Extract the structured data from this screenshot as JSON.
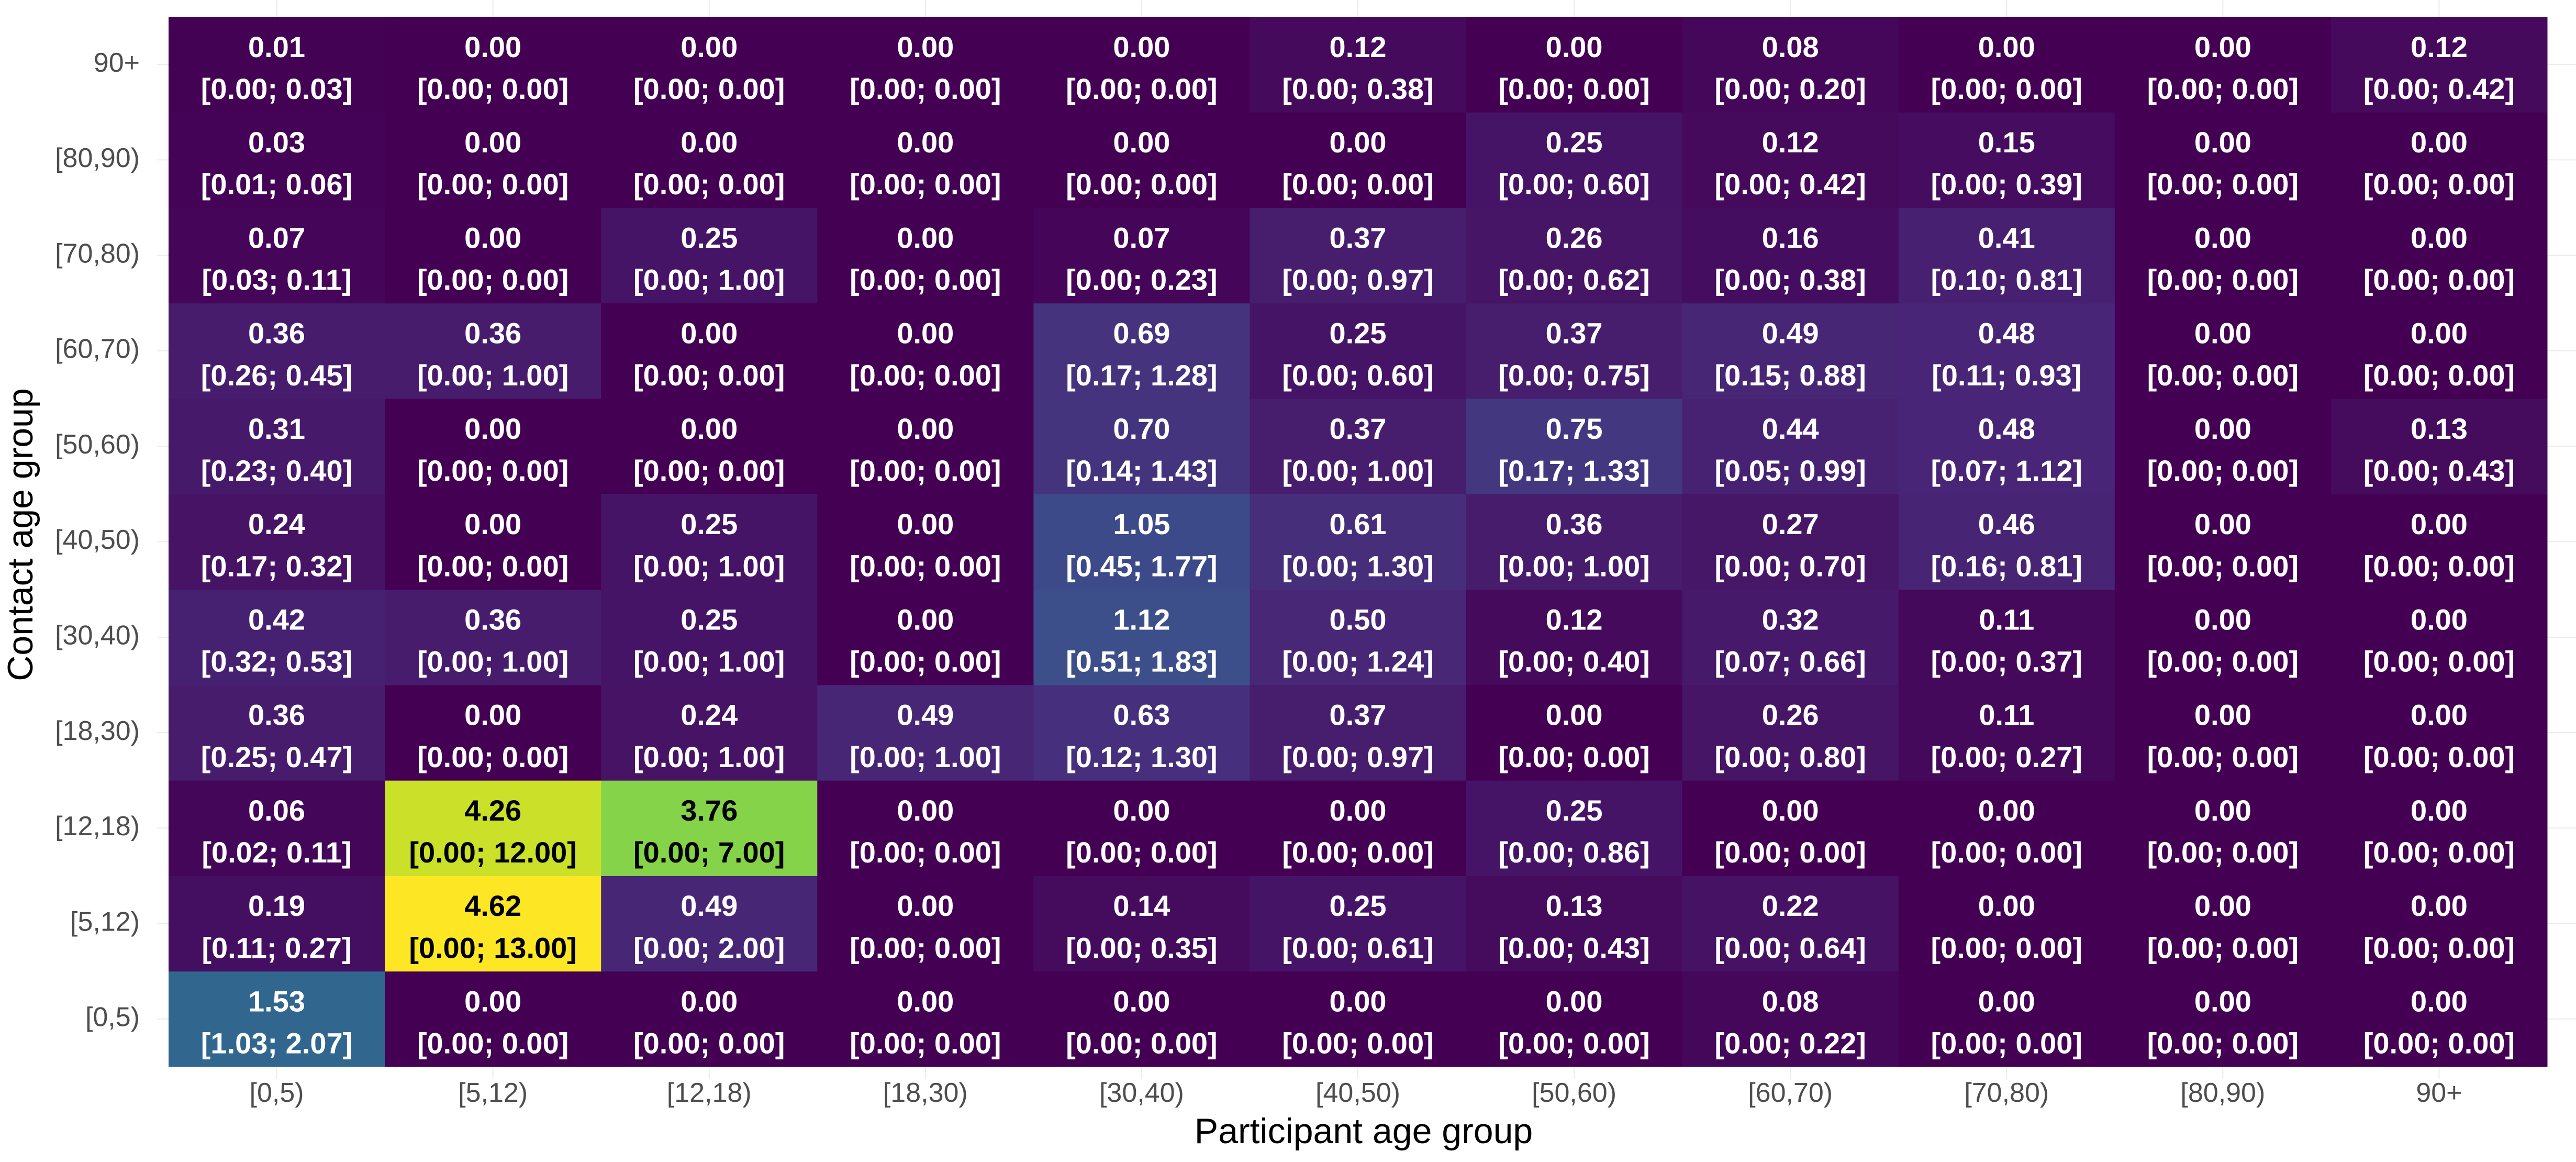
{
  "chart_data": {
    "type": "heatmap",
    "title": "",
    "xlabel": "Participant age group",
    "ylabel": "Contact age group",
    "x_categories": [
      "[0,5)",
      "[5,12)",
      "[12,18)",
      "[18,30)",
      "[30,40)",
      "[40,50)",
      "[50,60)",
      "[60,70)",
      "[70,80)",
      "[80,90)",
      "90+"
    ],
    "y_categories": [
      "[0,5)",
      "[5,12)",
      "[12,18)",
      "[18,30)",
      "[30,40)",
      "[40,50)",
      "[50,60)",
      "[60,70)",
      "[70,80)",
      "[80,90)",
      "90+"
    ],
    "color_scale": "viridis",
    "value_range": [
      0,
      4.62
    ],
    "values": [
      [
        1.53,
        0.0,
        0.0,
        0.0,
        0.0,
        0.0,
        0.0,
        0.08,
        0.0,
        0.0,
        0.0
      ],
      [
        0.19,
        4.62,
        0.49,
        0.0,
        0.14,
        0.25,
        0.13,
        0.22,
        0.0,
        0.0,
        0.0
      ],
      [
        0.06,
        4.26,
        3.76,
        0.0,
        0.0,
        0.0,
        0.25,
        0.0,
        0.0,
        0.0,
        0.0
      ],
      [
        0.36,
        0.0,
        0.24,
        0.49,
        0.63,
        0.37,
        0.0,
        0.26,
        0.11,
        0.0,
        0.0
      ],
      [
        0.42,
        0.36,
        0.25,
        0.0,
        1.12,
        0.5,
        0.12,
        0.32,
        0.11,
        0.0,
        0.0
      ],
      [
        0.24,
        0.0,
        0.25,
        0.0,
        1.05,
        0.61,
        0.36,
        0.27,
        0.46,
        0.0,
        0.0
      ],
      [
        0.31,
        0.0,
        0.0,
        0.0,
        0.7,
        0.37,
        0.75,
        0.44,
        0.48,
        0.0,
        0.13
      ],
      [
        0.36,
        0.36,
        0.0,
        0.0,
        0.69,
        0.25,
        0.37,
        0.49,
        0.48,
        0.0,
        0.0
      ],
      [
        0.07,
        0.0,
        0.25,
        0.0,
        0.07,
        0.37,
        0.26,
        0.16,
        0.41,
        0.0,
        0.0
      ],
      [
        0.03,
        0.0,
        0.0,
        0.0,
        0.0,
        0.0,
        0.25,
        0.12,
        0.15,
        0.0,
        0.0
      ],
      [
        0.01,
        0.0,
        0.0,
        0.0,
        0.0,
        0.12,
        0.0,
        0.08,
        0.0,
        0.0,
        0.12
      ]
    ],
    "value_labels": [
      [
        "1.53",
        "0.00",
        "0.00",
        "0.00",
        "0.00",
        "0.00",
        "0.00",
        "0.08",
        "0.00",
        "0.00",
        "0.00"
      ],
      [
        "0.19",
        "4.62",
        "0.49",
        "0.00",
        "0.14",
        "0.25",
        "0.13",
        "0.22",
        "0.00",
        "0.00",
        "0.00"
      ],
      [
        "0.06",
        "4.26",
        "3.76",
        "0.00",
        "0.00",
        "0.00",
        "0.25",
        "0.00",
        "0.00",
        "0.00",
        "0.00"
      ],
      [
        "0.36",
        "0.00",
        "0.24",
        "0.49",
        "0.63",
        "0.37",
        "0.00",
        "0.26",
        "0.11",
        "0.00",
        "0.00"
      ],
      [
        "0.42",
        "0.36",
        "0.25",
        "0.00",
        "1.12",
        "0.50",
        "0.12",
        "0.32",
        "0.11",
        "0.00",
        "0.00"
      ],
      [
        "0.24",
        "0.00",
        "0.25",
        "0.00",
        "1.05",
        "0.61",
        "0.36",
        "0.27",
        "0.46",
        "0.00",
        "0.00"
      ],
      [
        "0.31",
        "0.00",
        "0.00",
        "0.00",
        "0.70",
        "0.37",
        "0.75",
        "0.44",
        "0.48",
        "0.00",
        "0.13"
      ],
      [
        "0.36",
        "0.36",
        "0.00",
        "0.00",
        "0.69",
        "0.25",
        "0.37",
        "0.49",
        "0.48",
        "0.00",
        "0.00"
      ],
      [
        "0.07",
        "0.00",
        "0.25",
        "0.00",
        "0.07",
        "0.37",
        "0.26",
        "0.16",
        "0.41",
        "0.00",
        "0.00"
      ],
      [
        "0.03",
        "0.00",
        "0.00",
        "0.00",
        "0.00",
        "0.00",
        "0.25",
        "0.12",
        "0.15",
        "0.00",
        "0.00"
      ],
      [
        "0.01",
        "0.00",
        "0.00",
        "0.00",
        "0.00",
        "0.12",
        "0.00",
        "0.08",
        "0.00",
        "0.00",
        "0.12"
      ]
    ],
    "interval_labels": [
      [
        "[1.03; 2.07]",
        "[0.00; 0.00]",
        "[0.00; 0.00]",
        "[0.00; 0.00]",
        "[0.00; 0.00]",
        "[0.00; 0.00]",
        "[0.00; 0.00]",
        "[0.00; 0.22]",
        "[0.00; 0.00]",
        "[0.00; 0.00]",
        "[0.00; 0.00]"
      ],
      [
        "[0.11; 0.27]",
        "[0.00; 13.00]",
        "[0.00; 2.00]",
        "[0.00; 0.00]",
        "[0.00; 0.35]",
        "[0.00; 0.61]",
        "[0.00; 0.43]",
        "[0.00; 0.64]",
        "[0.00; 0.00]",
        "[0.00; 0.00]",
        "[0.00; 0.00]"
      ],
      [
        "[0.02; 0.11]",
        "[0.00; 12.00]",
        "[0.00; 7.00]",
        "[0.00; 0.00]",
        "[0.00; 0.00]",
        "[0.00; 0.00]",
        "[0.00; 0.86]",
        "[0.00; 0.00]",
        "[0.00; 0.00]",
        "[0.00; 0.00]",
        "[0.00; 0.00]"
      ],
      [
        "[0.25; 0.47]",
        "[0.00; 0.00]",
        "[0.00; 1.00]",
        "[0.00; 1.00]",
        "[0.12; 1.30]",
        "[0.00; 0.97]",
        "[0.00; 0.00]",
        "[0.00; 0.80]",
        "[0.00; 0.27]",
        "[0.00; 0.00]",
        "[0.00; 0.00]"
      ],
      [
        "[0.32; 0.53]",
        "[0.00; 1.00]",
        "[0.00; 1.00]",
        "[0.00; 0.00]",
        "[0.51; 1.83]",
        "[0.00; 1.24]",
        "[0.00; 0.40]",
        "[0.07; 0.66]",
        "[0.00; 0.37]",
        "[0.00; 0.00]",
        "[0.00; 0.00]"
      ],
      [
        "[0.17; 0.32]",
        "[0.00; 0.00]",
        "[0.00; 1.00]",
        "[0.00; 0.00]",
        "[0.45; 1.77]",
        "[0.00; 1.30]",
        "[0.00; 1.00]",
        "[0.00; 0.70]",
        "[0.16; 0.81]",
        "[0.00; 0.00]",
        "[0.00; 0.00]"
      ],
      [
        "[0.23; 0.40]",
        "[0.00; 0.00]",
        "[0.00; 0.00]",
        "[0.00; 0.00]",
        "[0.14; 1.43]",
        "[0.00; 1.00]",
        "[0.17; 1.33]",
        "[0.05; 0.99]",
        "[0.07; 1.12]",
        "[0.00; 0.00]",
        "[0.00; 0.43]"
      ],
      [
        "[0.26; 0.45]",
        "[0.00; 1.00]",
        "[0.00; 0.00]",
        "[0.00; 0.00]",
        "[0.17; 1.28]",
        "[0.00; 0.60]",
        "[0.00; 0.75]",
        "[0.15; 0.88]",
        "[0.11; 0.93]",
        "[0.00; 0.00]",
        "[0.00; 0.00]"
      ],
      [
        "[0.03; 0.11]",
        "[0.00; 0.00]",
        "[0.00; 1.00]",
        "[0.00; 0.00]",
        "[0.00; 0.23]",
        "[0.00; 0.97]",
        "[0.00; 0.62]",
        "[0.00; 0.38]",
        "[0.10; 0.81]",
        "[0.00; 0.00]",
        "[0.00; 0.00]"
      ],
      [
        "[0.01; 0.06]",
        "[0.00; 0.00]",
        "[0.00; 0.00]",
        "[0.00; 0.00]",
        "[0.00; 0.00]",
        "[0.00; 0.00]",
        "[0.00; 0.60]",
        "[0.00; 0.42]",
        "[0.00; 0.39]",
        "[0.00; 0.00]",
        "[0.00; 0.00]"
      ],
      [
        "[0.00; 0.03]",
        "[0.00; 0.00]",
        "[0.00; 0.00]",
        "[0.00; 0.00]",
        "[0.00; 0.00]",
        "[0.00; 0.38]",
        "[0.00; 0.00]",
        "[0.00; 0.20]",
        "[0.00; 0.00]",
        "[0.00; 0.00]",
        "[0.00; 0.42]"
      ]
    ],
    "grid": true,
    "legend": "none"
  },
  "colors": {
    "viridis": [
      "#440154",
      "#482878",
      "#3e4989",
      "#31688e",
      "#26828e",
      "#1f9e89",
      "#35b779",
      "#6ece58",
      "#b5de2b",
      "#fde725"
    ],
    "gridline": "#ebebeb",
    "text_light": "#ffffff",
    "text_dark": "#000000",
    "tick_text": "#4d4d4d"
  }
}
